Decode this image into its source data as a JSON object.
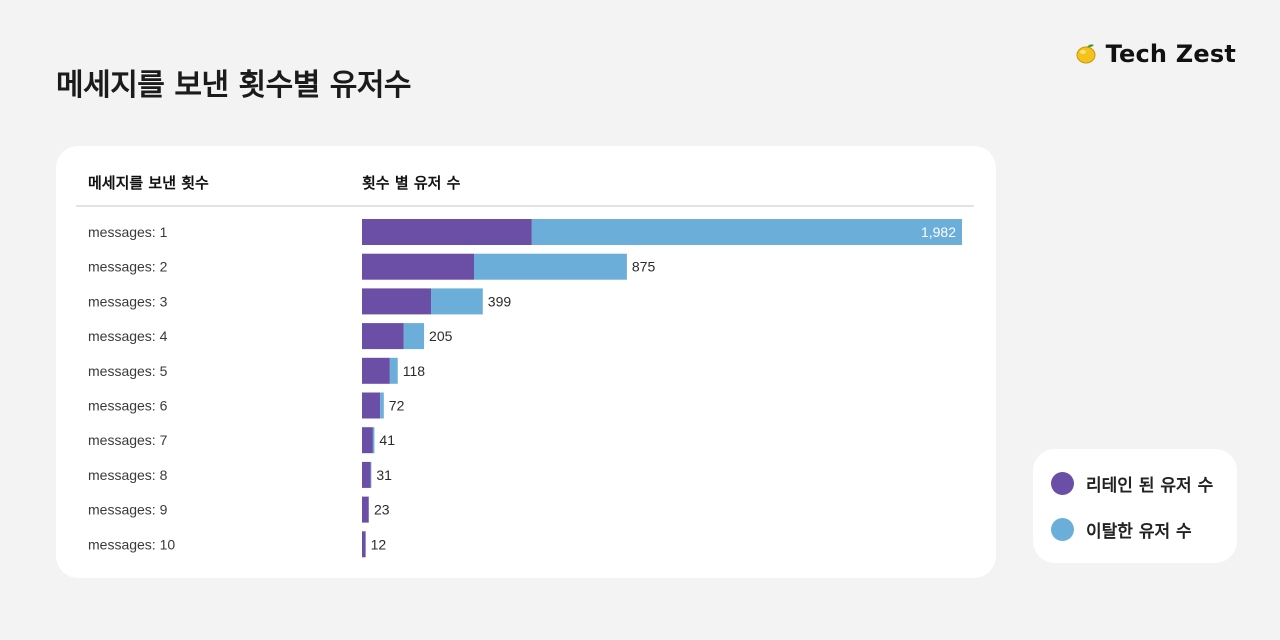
{
  "page": {
    "title": "메세지를 보낸 횟수별 유저수",
    "brand": "Tech Zest",
    "brand_icon": "lemon-icon"
  },
  "table": {
    "col1_header": "메세지를 보낸 횟수",
    "col2_header": "횟수 별 유저 수"
  },
  "legend": {
    "retained_label": "리테인 된 유저 수",
    "churned_label": "이탈한 유저 수"
  },
  "colors": {
    "retained": "#6b4ea6",
    "churned": "#6aaed9"
  },
  "chart_data": {
    "type": "bar",
    "orientation": "horizontal",
    "stacked": true,
    "categories": [
      "messages: 1",
      "messages: 2",
      "messages: 3",
      "messages: 4",
      "messages: 5",
      "messages: 6",
      "messages: 7",
      "messages: 8",
      "messages: 9",
      "messages: 10"
    ],
    "totals": [
      1982,
      875,
      399,
      205,
      118,
      72,
      41,
      31,
      23,
      12
    ],
    "total_labels": [
      "1,982",
      "875",
      "399",
      "205",
      "118",
      "72",
      "41",
      "31",
      "23",
      "12"
    ],
    "series": [
      {
        "name": "리테인 된 유저 수",
        "values": [
          561,
          370,
          228,
          138,
          92,
          60,
          36,
          29,
          22,
          12
        ]
      },
      {
        "name": "이탈한 유저 수",
        "values": [
          1421,
          505,
          171,
          67,
          26,
          12,
          5,
          2,
          1,
          0
        ]
      }
    ],
    "xlim": [
      0,
      1982
    ],
    "grid": false,
    "legend_position": "right"
  }
}
